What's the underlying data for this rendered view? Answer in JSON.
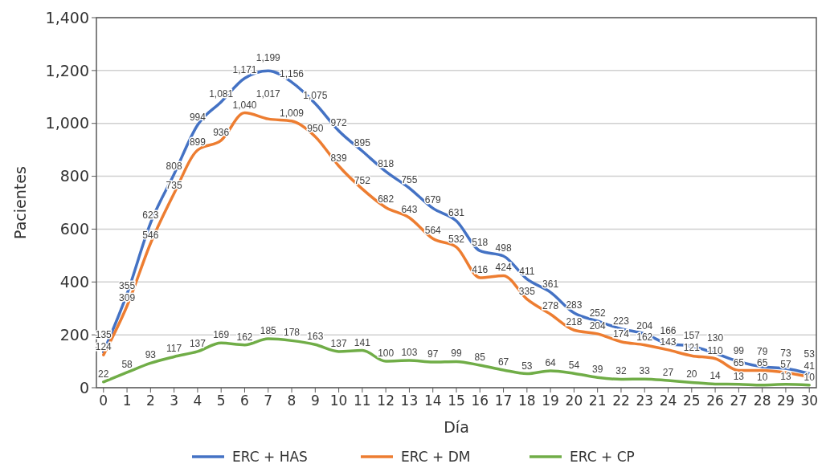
{
  "chart_data": {
    "type": "line",
    "xlabel": "Día",
    "ylabel": "Pacientes",
    "x": [
      0,
      1,
      2,
      3,
      4,
      5,
      6,
      7,
      8,
      9,
      10,
      11,
      12,
      13,
      14,
      15,
      16,
      17,
      18,
      19,
      20,
      21,
      22,
      23,
      24,
      25,
      26,
      27,
      28,
      29,
      30
    ],
    "xlim": [
      -0.3,
      30.3
    ],
    "xticks": [
      0,
      1,
      2,
      3,
      4,
      5,
      6,
      7,
      8,
      9,
      10,
      11,
      12,
      13,
      14,
      15,
      16,
      17,
      18,
      19,
      20,
      21,
      22,
      23,
      24,
      25,
      26,
      27,
      28,
      29,
      30
    ],
    "ylim": [
      0,
      1400
    ],
    "yticks": [
      {
        "value": 0,
        "label": "0"
      },
      {
        "value": 200,
        "label": "200"
      },
      {
        "value": 400,
        "label": "400"
      },
      {
        "value": 600,
        "label": "600"
      },
      {
        "value": 800,
        "label": "800"
      },
      {
        "value": 1000,
        "label": "1,000"
      },
      {
        "value": 1200,
        "label": "1,200"
      },
      {
        "value": 1400,
        "label": "1,400"
      }
    ],
    "grid": "y",
    "legend": "bottom",
    "marker": "none",
    "line_style": "solid",
    "series": [
      {
        "name": "ERC + HAS",
        "color": "#4472c4",
        "values": [
          135,
          355,
          623,
          808,
          994,
          1081,
          1171,
          1199,
          1156,
          1075,
          972,
          895,
          818,
          755,
          679,
          631,
          518,
          498,
          411,
          361,
          283,
          252,
          223,
          204,
          166,
          157,
          130,
          99,
          79,
          73,
          53
        ],
        "value_labels": [
          "135",
          "355",
          "623",
          "808",
          "994",
          "1,081",
          "1,171",
          "1,199",
          "1,156",
          "1,075",
          "972",
          "895",
          "818",
          "755",
          "679",
          "631",
          "518",
          "498",
          "411",
          "361",
          "283",
          "252",
          "223",
          "204",
          "166",
          "157",
          "130",
          "99",
          "79",
          "73",
          "53"
        ]
      },
      {
        "name": "ERC + DM",
        "color": "#ed7d31",
        "values": [
          124,
          309,
          546,
          735,
          899,
          936,
          1040,
          1017,
          1009,
          950,
          839,
          752,
          682,
          643,
          564,
          532,
          416,
          424,
          335,
          278,
          218,
          204,
          174,
          162,
          143,
          121,
          110,
          65,
          65,
          57,
          41
        ],
        "value_labels": [
          "124",
          "309",
          "546",
          "735",
          "899",
          "936",
          "1,040",
          "1,017",
          "1,009",
          "950",
          "839",
          "752",
          "682",
          "643",
          "564",
          "532",
          "416",
          "424",
          "335",
          "278",
          "218",
          "204",
          "174",
          "162",
          "143",
          "121",
          "110",
          "65",
          "65",
          "57",
          "41"
        ]
      },
      {
        "name": "ERC + CP",
        "color": "#70ad47",
        "values": [
          22,
          58,
          93,
          117,
          137,
          169,
          162,
          185,
          178,
          163,
          137,
          141,
          100,
          103,
          97,
          99,
          85,
          67,
          53,
          64,
          54,
          39,
          32,
          33,
          27,
          20,
          14,
          13,
          10,
          13,
          10
        ],
        "value_labels": [
          "22",
          "58",
          "93",
          "117",
          "137",
          "169",
          "162",
          "185",
          "178",
          "163",
          "137",
          "141",
          "100",
          "103",
          "97",
          "99",
          "85",
          "67",
          "53",
          "64",
          "54",
          "39",
          "32",
          "33",
          "27",
          "20",
          "14",
          "13",
          "10",
          "13",
          "10"
        ]
      }
    ]
  }
}
